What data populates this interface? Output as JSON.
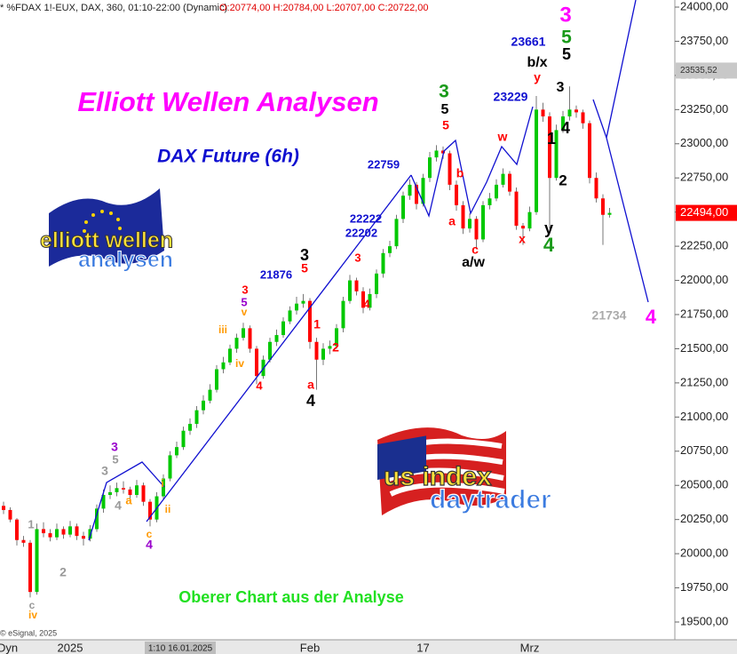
{
  "chart_data": {
    "type": "candlestick",
    "header": "* %FDAX 1!-EUX, DAX, 360, 01:10-22:00 (Dynamic)",
    "header_ohlc": "O:20774,00 H:20784,00 L:20707,00 C:20722,00",
    "title": "Elliott Wellen Analysen",
    "subtitle": "DAX Future (6h)",
    "footer": "Oberer Chart aus der Analyse",
    "copyright": "© eSignal, 2025",
    "session_label": "Dyn",
    "cursor_label": "1:10 16.01.2025",
    "logos": {
      "eu_line1": "elliott wellen",
      "eu_line2": "analysen",
      "us_line1": "us index",
      "us_line2": "daytrader"
    },
    "up_color": "#00c800",
    "down_color": "#ff0000",
    "x": [
      null,
      null,
      null,
      null,
      null,
      null,
      null,
      null,
      null,
      null,
      "2025",
      null,
      null,
      null,
      null,
      null,
      null,
      null,
      null,
      null,
      null,
      null,
      null,
      null,
      null,
      null,
      null,
      null,
      null,
      null,
      null,
      null,
      null,
      null,
      null,
      null,
      null,
      null,
      null,
      null,
      null,
      null,
      null,
      null,
      null,
      null,
      "Feb",
      null,
      null,
      null,
      null,
      null,
      null,
      null,
      null,
      null,
      null,
      null,
      null,
      null,
      null,
      null,
      null,
      "17",
      null,
      null,
      null,
      null,
      null,
      null,
      null,
      null,
      null,
      null,
      null,
      null,
      null,
      null,
      null,
      "Mrz",
      null,
      null,
      null,
      null,
      null,
      null,
      null,
      null,
      null,
      null,
      null,
      null
    ],
    "candles": [
      [
        20350,
        20380,
        20290,
        20320
      ],
      [
        20320,
        20340,
        20230,
        20250
      ],
      [
        20250,
        20260,
        20060,
        20100
      ],
      [
        20100,
        20130,
        20050,
        20080
      ],
      [
        20080,
        20100,
        19680,
        19720
      ],
      [
        19720,
        20220,
        19700,
        20180
      ],
      [
        20180,
        20230,
        20120,
        20150
      ],
      [
        20150,
        20180,
        20090,
        20120
      ],
      [
        20120,
        20220,
        20100,
        20180
      ],
      [
        20180,
        20200,
        20110,
        20140
      ],
      [
        20140,
        20240,
        20120,
        20200
      ],
      [
        20200,
        20220,
        20100,
        20130
      ],
      [
        20130,
        20160,
        20060,
        20110
      ],
      [
        20110,
        20210,
        20090,
        20180
      ],
      [
        20180,
        20360,
        20160,
        20330
      ],
      [
        20330,
        20470,
        20300,
        20430
      ],
      [
        20430,
        20500,
        20400,
        20450
      ],
      [
        20450,
        20520,
        20420,
        20480
      ],
      [
        20480,
        20530,
        20440,
        20470
      ],
      [
        20470,
        20490,
        20380,
        20430
      ],
      [
        20430,
        20540,
        20410,
        20500
      ],
      [
        20500,
        20520,
        20350,
        20380
      ],
      [
        20380,
        20400,
        20200,
        20250
      ],
      [
        20250,
        20450,
        20230,
        20420
      ],
      [
        20420,
        20580,
        20400,
        20550
      ],
      [
        20550,
        20750,
        20530,
        20720
      ],
      [
        20720,
        20820,
        20700,
        20780
      ],
      [
        20780,
        20930,
        20760,
        20900
      ],
      [
        20900,
        20990,
        20870,
        20950
      ],
      [
        20950,
        21080,
        20920,
        21050
      ],
      [
        21050,
        21160,
        21020,
        21120
      ],
      [
        21120,
        21240,
        21100,
        21200
      ],
      [
        21200,
        21380,
        21180,
        21350
      ],
      [
        21350,
        21440,
        21320,
        21400
      ],
      [
        21400,
        21530,
        21380,
        21500
      ],
      [
        21500,
        21610,
        21470,
        21580
      ],
      [
        21580,
        21690,
        21560,
        21650
      ],
      [
        21650,
        21670,
        21470,
        21500
      ],
      [
        21500,
        21520,
        21240,
        21300
      ],
      [
        21300,
        21450,
        21280,
        21420
      ],
      [
        21420,
        21580,
        21400,
        21550
      ],
      [
        21550,
        21640,
        21520,
        21600
      ],
      [
        21600,
        21730,
        21580,
        21700
      ],
      [
        21700,
        21810,
        21680,
        21780
      ],
      [
        21780,
        21880,
        21750,
        21830
      ],
      [
        21830,
        21900,
        21800,
        21850
      ],
      [
        21850,
        21870,
        21500,
        21550
      ],
      [
        21550,
        21580,
        21200,
        21420
      ],
      [
        21420,
        21540,
        21380,
        21500
      ],
      [
        21500,
        21560,
        21460,
        21520
      ],
      [
        21520,
        21680,
        21500,
        21650
      ],
      [
        21650,
        21880,
        21620,
        21850
      ],
      [
        21850,
        22040,
        21830,
        22000
      ],
      [
        22000,
        22020,
        21890,
        21920
      ],
      [
        21920,
        21950,
        21760,
        21800
      ],
      [
        21800,
        21940,
        21780,
        21900
      ],
      [
        21900,
        22080,
        21870,
        22050
      ],
      [
        22050,
        22230,
        22020,
        22200
      ],
      [
        22200,
        22290,
        22170,
        22250
      ],
      [
        22250,
        22480,
        22230,
        22450
      ],
      [
        22450,
        22650,
        22420,
        22620
      ],
      [
        22620,
        22740,
        22590,
        22700
      ],
      [
        22700,
        22720,
        22520,
        22560
      ],
      [
        22560,
        22780,
        22540,
        22750
      ],
      [
        22750,
        22940,
        22720,
        22900
      ],
      [
        22900,
        22990,
        22870,
        22950
      ],
      [
        22950,
        22980,
        22890,
        22930
      ],
      [
        22930,
        22950,
        22660,
        22700
      ],
      [
        22700,
        22730,
        22510,
        22550
      ],
      [
        22550,
        22580,
        22340,
        22380
      ],
      [
        22380,
        22490,
        22350,
        22450
      ],
      [
        22450,
        22470,
        22230,
        22300
      ],
      [
        22300,
        22580,
        22280,
        22550
      ],
      [
        22550,
        22640,
        22520,
        22600
      ],
      [
        22600,
        22740,
        22580,
        22700
      ],
      [
        22700,
        22820,
        22680,
        22780
      ],
      [
        22780,
        22800,
        22620,
        22650
      ],
      [
        22650,
        22680,
        22370,
        22400
      ],
      [
        22400,
        22420,
        22260,
        22380
      ],
      [
        22380,
        22540,
        22360,
        22500
      ],
      [
        22500,
        23350,
        22480,
        23250
      ],
      [
        23250,
        23300,
        23160,
        23200
      ],
      [
        23200,
        23230,
        22380,
        22750
      ],
      [
        22750,
        23140,
        22730,
        23100
      ],
      [
        23100,
        23240,
        23080,
        23200
      ],
      [
        23200,
        23420,
        23170,
        23250
      ],
      [
        23250,
        23280,
        23190,
        23230
      ],
      [
        23230,
        23250,
        23110,
        23150
      ],
      [
        23150,
        23170,
        22710,
        22750
      ],
      [
        22750,
        22790,
        22570,
        22600
      ],
      [
        22600,
        22630,
        22260,
        22480
      ],
      [
        22480,
        22530,
        22460,
        22494
      ]
    ],
    "ylim": [
      19370,
      24052
    ],
    "yticks": [
      {
        "value": 19500,
        "label": "19500,00"
      },
      {
        "value": 19750,
        "label": "19750,00"
      },
      {
        "value": 20000,
        "label": "20000,00"
      },
      {
        "value": 20250,
        "label": "20250,00"
      },
      {
        "value": 20500,
        "label": "20500,00"
      },
      {
        "value": 20750,
        "label": "20750,00"
      },
      {
        "value": 21000,
        "label": "21000,00"
      },
      {
        "value": 21250,
        "label": "21250,00"
      },
      {
        "value": 21500,
        "label": "21500,00"
      },
      {
        "value": 21750,
        "label": "21750,00"
      },
      {
        "value": 22000,
        "label": "22000,00"
      },
      {
        "value": 22250,
        "label": "22250,00"
      },
      {
        "value": 22500,
        "label": "22500,00"
      },
      {
        "value": 22750,
        "label": "22750,00"
      },
      {
        "value": 23000,
        "label": "23000,00"
      },
      {
        "value": 23250,
        "label": "23250,00"
      },
      {
        "value": 23500,
        "label": "23500,00"
      },
      {
        "value": 23750,
        "label": "23750,00"
      },
      {
        "value": 24000,
        "label": "24000,00"
      }
    ],
    "price_markers": [
      {
        "value": 23535.52,
        "label": "23535,52",
        "color": "#c8c8c8"
      },
      {
        "value": 22494,
        "label": "22494,00",
        "color": "#ff0000"
      }
    ],
    "annotations": [
      "3",
      "5",
      "5",
      "23661",
      "b/x",
      "y",
      "23229",
      "3",
      "4",
      "1",
      "2",
      "y",
      "4",
      "21734",
      "4",
      "3",
      "5",
      "5",
      "w",
      "b",
      "a",
      "c",
      "a/w",
      "x",
      "22759",
      "22222",
      "22202",
      "3",
      "4",
      "3",
      "5",
      "21876",
      "1",
      "2",
      "a",
      "4",
      "3",
      "5",
      "v",
      "iii",
      "iv",
      "4",
      "3",
      "5",
      "3",
      "4",
      "a",
      "i",
      "ii",
      "c",
      "4",
      "1",
      "2",
      "c",
      "iv"
    ]
  }
}
